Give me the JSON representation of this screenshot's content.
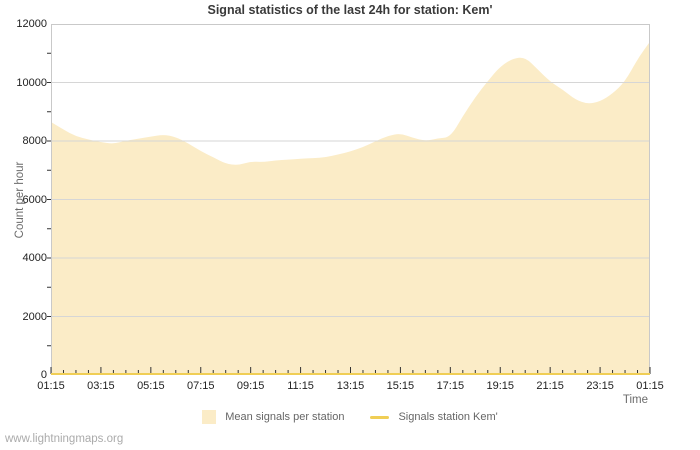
{
  "footer": {
    "watermark": "www.lightningmaps.org"
  },
  "colors": {
    "background": "#ffffff",
    "plot_border": "#c9c9c9",
    "gridline": "#d6d6d6",
    "tick": "#333333",
    "area_fill": "#fbecc7",
    "station_line": "#f0ce55",
    "title_text": "#3a3a3a",
    "axis_text": "#222222",
    "muted_text": "#6b6b6b"
  },
  "chart_data": {
    "type": "area",
    "title": "Signal statistics of the last 24h for station: Kem'",
    "xlabel": "Time",
    "ylabel": "Count per hour",
    "ylim": [
      0,
      12000
    ],
    "ytick_step": 2000,
    "y_minor_step": 1000,
    "grid": "horizontal-only",
    "legend_position": "bottom",
    "y_tick_labels": [
      "0",
      "2000",
      "4000",
      "6000",
      "8000",
      "10000",
      "12000"
    ],
    "x_tick_labels": [
      "01:15",
      "03:15",
      "05:15",
      "07:15",
      "09:15",
      "11:15",
      "13:15",
      "15:15",
      "17:15",
      "19:15",
      "21:15",
      "23:15",
      "01:15"
    ],
    "x_minor_interval_minutes": 30,
    "x_major_interval_hours": 2,
    "sample_interval_minutes": 30,
    "series": [
      {
        "name": "Mean signals per station",
        "style": "area",
        "color": "#fbecc7",
        "values": [
          8650,
          8390,
          8160,
          8050,
          7960,
          7900,
          8010,
          8080,
          8150,
          8220,
          8140,
          7920,
          7650,
          7450,
          7220,
          7170,
          7300,
          7280,
          7340,
          7360,
          7390,
          7420,
          7440,
          7540,
          7640,
          7790,
          7990,
          8180,
          8260,
          8110,
          8000,
          8090,
          8130,
          8850,
          9500,
          10050,
          10550,
          10820,
          10870,
          10450,
          10030,
          9760,
          9420,
          9260,
          9350,
          9620,
          10030,
          10800,
          11400
        ]
      },
      {
        "name": "Signals station Kem'",
        "style": "line",
        "color": "#f0ce55",
        "values": [
          0,
          0,
          0,
          0,
          0,
          0,
          0,
          0,
          0,
          0,
          0,
          0,
          0,
          0,
          0,
          0,
          0,
          0,
          0,
          0,
          0,
          0,
          0,
          0,
          0,
          0,
          0,
          0,
          0,
          0,
          0,
          0,
          0,
          0,
          0,
          0,
          0,
          0,
          0,
          0,
          0,
          0,
          0,
          0,
          0,
          0,
          0,
          0,
          0
        ]
      }
    ]
  }
}
